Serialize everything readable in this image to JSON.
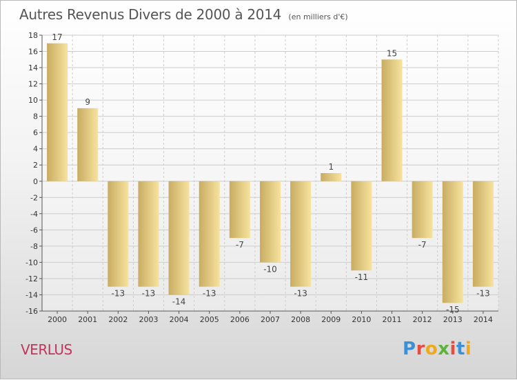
{
  "title": "Autres Revenus Divers de 2000 à 2014",
  "subtitle": "(en milliers d'€)",
  "commune": "VERLUS",
  "logo": {
    "text": "Proxiti",
    "colors": [
      "#3d8fd6",
      "#e94b3c",
      "#f2a81d",
      "#5db33c",
      "#e94b3c",
      "#3d8fd6",
      "#f2a81d"
    ]
  },
  "chart_data": {
    "type": "bar",
    "categories": [
      "2000",
      "2001",
      "2002",
      "2003",
      "2004",
      "2005",
      "2006",
      "2007",
      "2008",
      "2009",
      "2010",
      "2011",
      "2012",
      "2013",
      "2014"
    ],
    "values": [
      17,
      9,
      -13,
      -13,
      -14,
      -13,
      -7,
      -10,
      -13,
      1,
      -11,
      15,
      -7,
      -15,
      -13
    ],
    "data_labels": [
      "17",
      "9",
      "-13",
      "-13",
      "-14",
      "-13",
      "-7",
      "-10",
      "-13",
      "1",
      "-11",
      "15",
      "-7",
      "-15",
      "-13"
    ],
    "ylim": [
      -16,
      18
    ],
    "yticks": [
      18,
      16,
      14,
      12,
      10,
      8,
      6,
      4,
      2,
      0,
      -2,
      -4,
      -6,
      -8,
      -10,
      -12,
      -14,
      -16
    ],
    "grid": true,
    "bar_color_light": "#f7e39e",
    "bar_color_dark": "#c8ac62",
    "grid_color": "#cccccc"
  }
}
